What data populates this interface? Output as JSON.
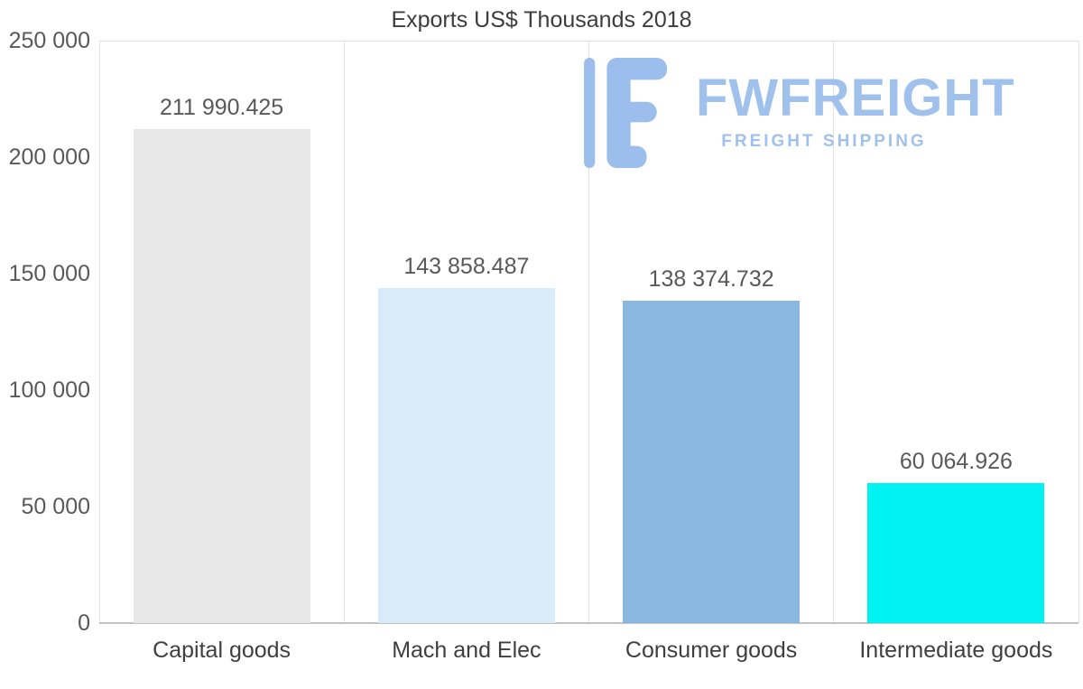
{
  "page": {
    "background_color": "#ffffff"
  },
  "watermark": {
    "brand": "FWFREIGHT",
    "tagline": "FREIGHT SHIPPING",
    "color": "#a0c1ec",
    "icon": "fwfreight-logo-icon"
  },
  "chart_data": {
    "type": "bar",
    "title": "Exports US$ Thousands 2018",
    "categories": [
      "Capital goods",
      "Mach and Elec",
      "Consumer goods",
      "Intermediate goods"
    ],
    "values": [
      211990.425,
      143858.487,
      138374.732,
      60064.926
    ],
    "value_labels": [
      "211 990.425",
      "143 858.487",
      "138 374.732",
      "60 064.926"
    ],
    "bar_colors": [
      "#e7e7e7",
      "#d9eaf8",
      "#8ab7df",
      "#00f2f2"
    ],
    "xlabel": "",
    "ylabel": "",
    "ylim": [
      0,
      250000
    ],
    "yticks": [
      0,
      50000,
      100000,
      150000,
      200000,
      250000
    ],
    "ytick_labels": [
      "0",
      "50 000",
      "100 000",
      "150 000",
      "200 000",
      "250 000"
    ],
    "grid": "vertical category separators; top border; bottom axis line",
    "legend": "none"
  }
}
